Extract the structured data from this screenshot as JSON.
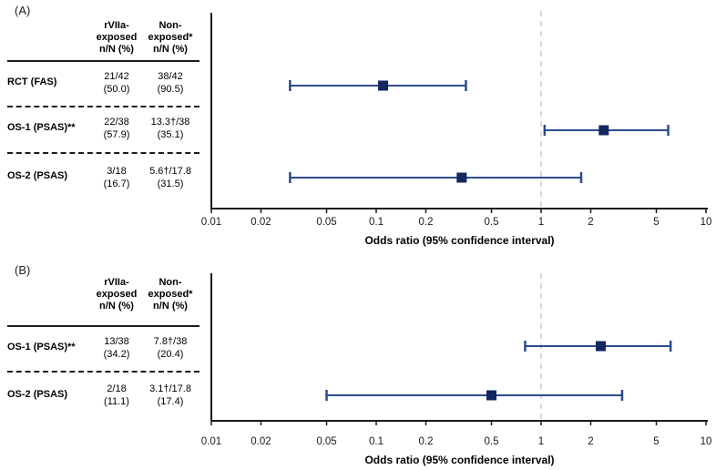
{
  "figure": {
    "axis_label": "Odds ratio (95% confidence interval)",
    "colors": {
      "marker": "#13275f",
      "ci_line": "#2c4b8e",
      "reference_line": "#cccccc",
      "axis": "#1a1a1a"
    }
  },
  "panels": [
    {
      "tag": "(A)",
      "col1_header": "rVIIa-\nexposed\nn/N (%)",
      "col2_header": "Non-\nexposed*\nn/N (%)",
      "rows": [
        {
          "label": "RCT (FAS)",
          "exposed_n": "21/42",
          "exposed_pct": "(50.0)",
          "nonexposed_n": "38/42",
          "nonexposed_pct": "(90.5)"
        },
        {
          "label": "OS-1 (PSAS)**",
          "exposed_n": "22/38",
          "exposed_pct": "(57.9)",
          "nonexposed_n": "13.3†/38",
          "nonexposed_pct": "(35.1)"
        },
        {
          "label": "OS-2 (PSAS)",
          "exposed_n": "3/18",
          "exposed_pct": "(16.7)",
          "nonexposed_n": "5.6†/17.8",
          "nonexposed_pct": "(31.5)"
        }
      ]
    },
    {
      "tag": "(B)",
      "col1_header": "rVIIa-\nexposed\nn/N (%)",
      "col2_header": "Non-\nexposed*\nn/N (%)",
      "rows": [
        {
          "label": "OS-1 (PSAS)**",
          "exposed_n": "13/38",
          "exposed_pct": "(34.2)",
          "nonexposed_n": "7.8†/38",
          "nonexposed_pct": "(20.4)"
        },
        {
          "label": "OS-2 (PSAS)",
          "exposed_n": "2/18",
          "exposed_pct": "(11.1)",
          "nonexposed_n": "3.1†/17.8",
          "nonexposed_pct": "(17.4)"
        }
      ]
    }
  ],
  "chart_data": [
    {
      "type": "scatter",
      "subtype": "forest-plot",
      "panel": "(A)",
      "xlabel": "Odds ratio (95% confidence interval)",
      "x_scale": "log",
      "xlim": [
        0.01,
        10
      ],
      "x_ticks": [
        0.01,
        0.02,
        0.05,
        0.1,
        0.2,
        0.5,
        1,
        2,
        5,
        10
      ],
      "x_tick_labels": [
        "0.01",
        "0.02",
        "0.05",
        "0.1",
        "0.2",
        "0.5",
        "1",
        "2",
        "5",
        "10"
      ],
      "reference_line_x": 1,
      "grid": false,
      "series": [
        {
          "name": "RCT (FAS)",
          "or": 0.11,
          "ci_low": 0.03,
          "ci_high": 0.35
        },
        {
          "name": "OS-1 (PSAS)**",
          "or": 2.4,
          "ci_low": 1.05,
          "ci_high": 5.9
        },
        {
          "name": "OS-2 (PSAS)",
          "or": 0.33,
          "ci_low": 0.03,
          "ci_high": 1.75
        }
      ]
    },
    {
      "type": "scatter",
      "subtype": "forest-plot",
      "panel": "(B)",
      "xlabel": "Odds ratio (95% confidence interval)",
      "x_scale": "log",
      "xlim": [
        0.01,
        10
      ],
      "x_ticks": [
        0.01,
        0.02,
        0.05,
        0.1,
        0.2,
        0.5,
        1,
        2,
        5,
        10
      ],
      "x_tick_labels": [
        "0.01",
        "0.02",
        "0.05",
        "0.1",
        "0.2",
        "0.5",
        "1",
        "2",
        "5",
        "10"
      ],
      "reference_line_x": 1,
      "grid": false,
      "series": [
        {
          "name": "OS-1 (PSAS)**",
          "or": 2.3,
          "ci_low": 0.8,
          "ci_high": 6.1
        },
        {
          "name": "OS-2 (PSAS)",
          "or": 0.5,
          "ci_low": 0.05,
          "ci_high": 3.1
        }
      ]
    }
  ]
}
